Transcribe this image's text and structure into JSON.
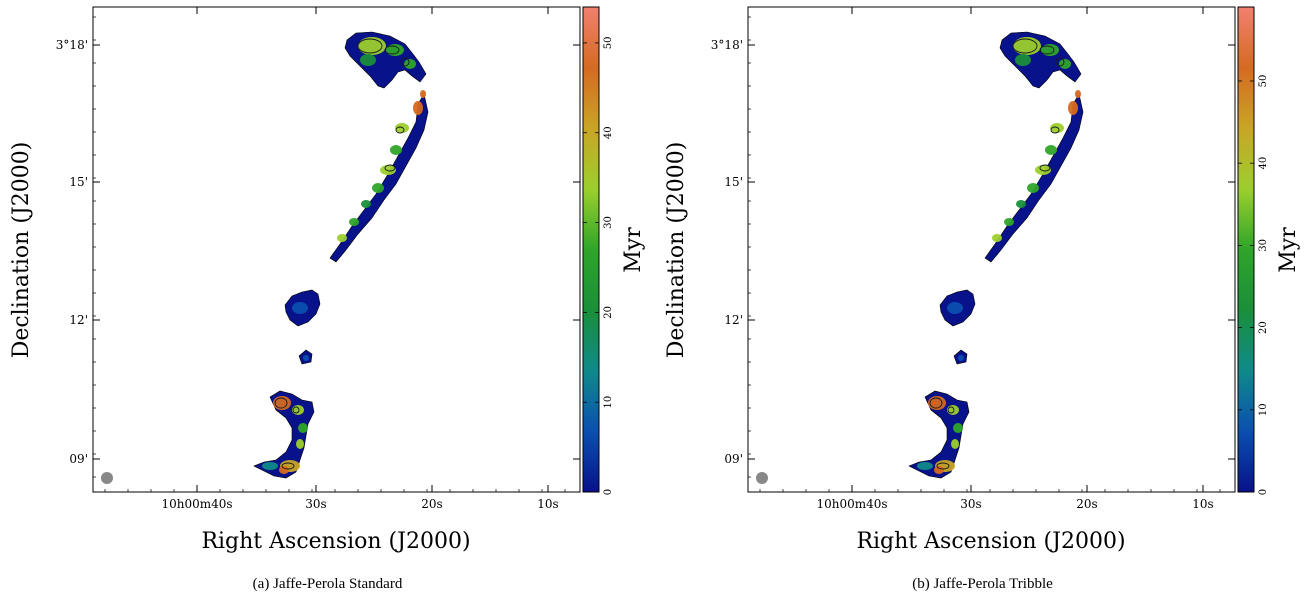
{
  "chart_data": [
    {
      "type": "heatmap",
      "caption": "(a) Jaffe-Perola Standard",
      "xlabel": "Right Ascension (J2000)",
      "ylabel": "Declination (J2000)",
      "colorbar_label": "Myr",
      "colorbar_range": [
        0,
        54
      ],
      "colorbar_ticks": [
        0,
        10,
        20,
        30,
        40,
        50
      ],
      "colormap": [
        "#08128a",
        "#0b4fb0",
        "#0f8a8a",
        "#1a8f3a",
        "#2fa52a",
        "#9ccf2c",
        "#c9a525",
        "#d56a22",
        "#f28070"
      ],
      "xticks": [
        "10h00m40s",
        "30s",
        "20s",
        "10s"
      ],
      "yticks": [
        "3°18'",
        "15'",
        "12'",
        "09'"
      ]
    },
    {
      "type": "heatmap",
      "caption": "(b) Jaffe-Perola Tribble",
      "xlabel": "Right Ascension (J2000)",
      "ylabel": "Declination (J2000)",
      "colorbar_label": "Myr",
      "colorbar_range": [
        0,
        59
      ],
      "colorbar_ticks": [
        0,
        10,
        20,
        30,
        40,
        50
      ],
      "colormap": [
        "#08128a",
        "#0b4fb0",
        "#0f8a8a",
        "#1a8f3a",
        "#2fa52a",
        "#9ccf2c",
        "#c9a525",
        "#d56a22",
        "#f28070"
      ],
      "xticks": [
        "10h00m40s",
        "30s",
        "20s",
        "10s"
      ],
      "yticks": [
        "3°18'",
        "15'",
        "12'",
        "09'"
      ]
    }
  ]
}
